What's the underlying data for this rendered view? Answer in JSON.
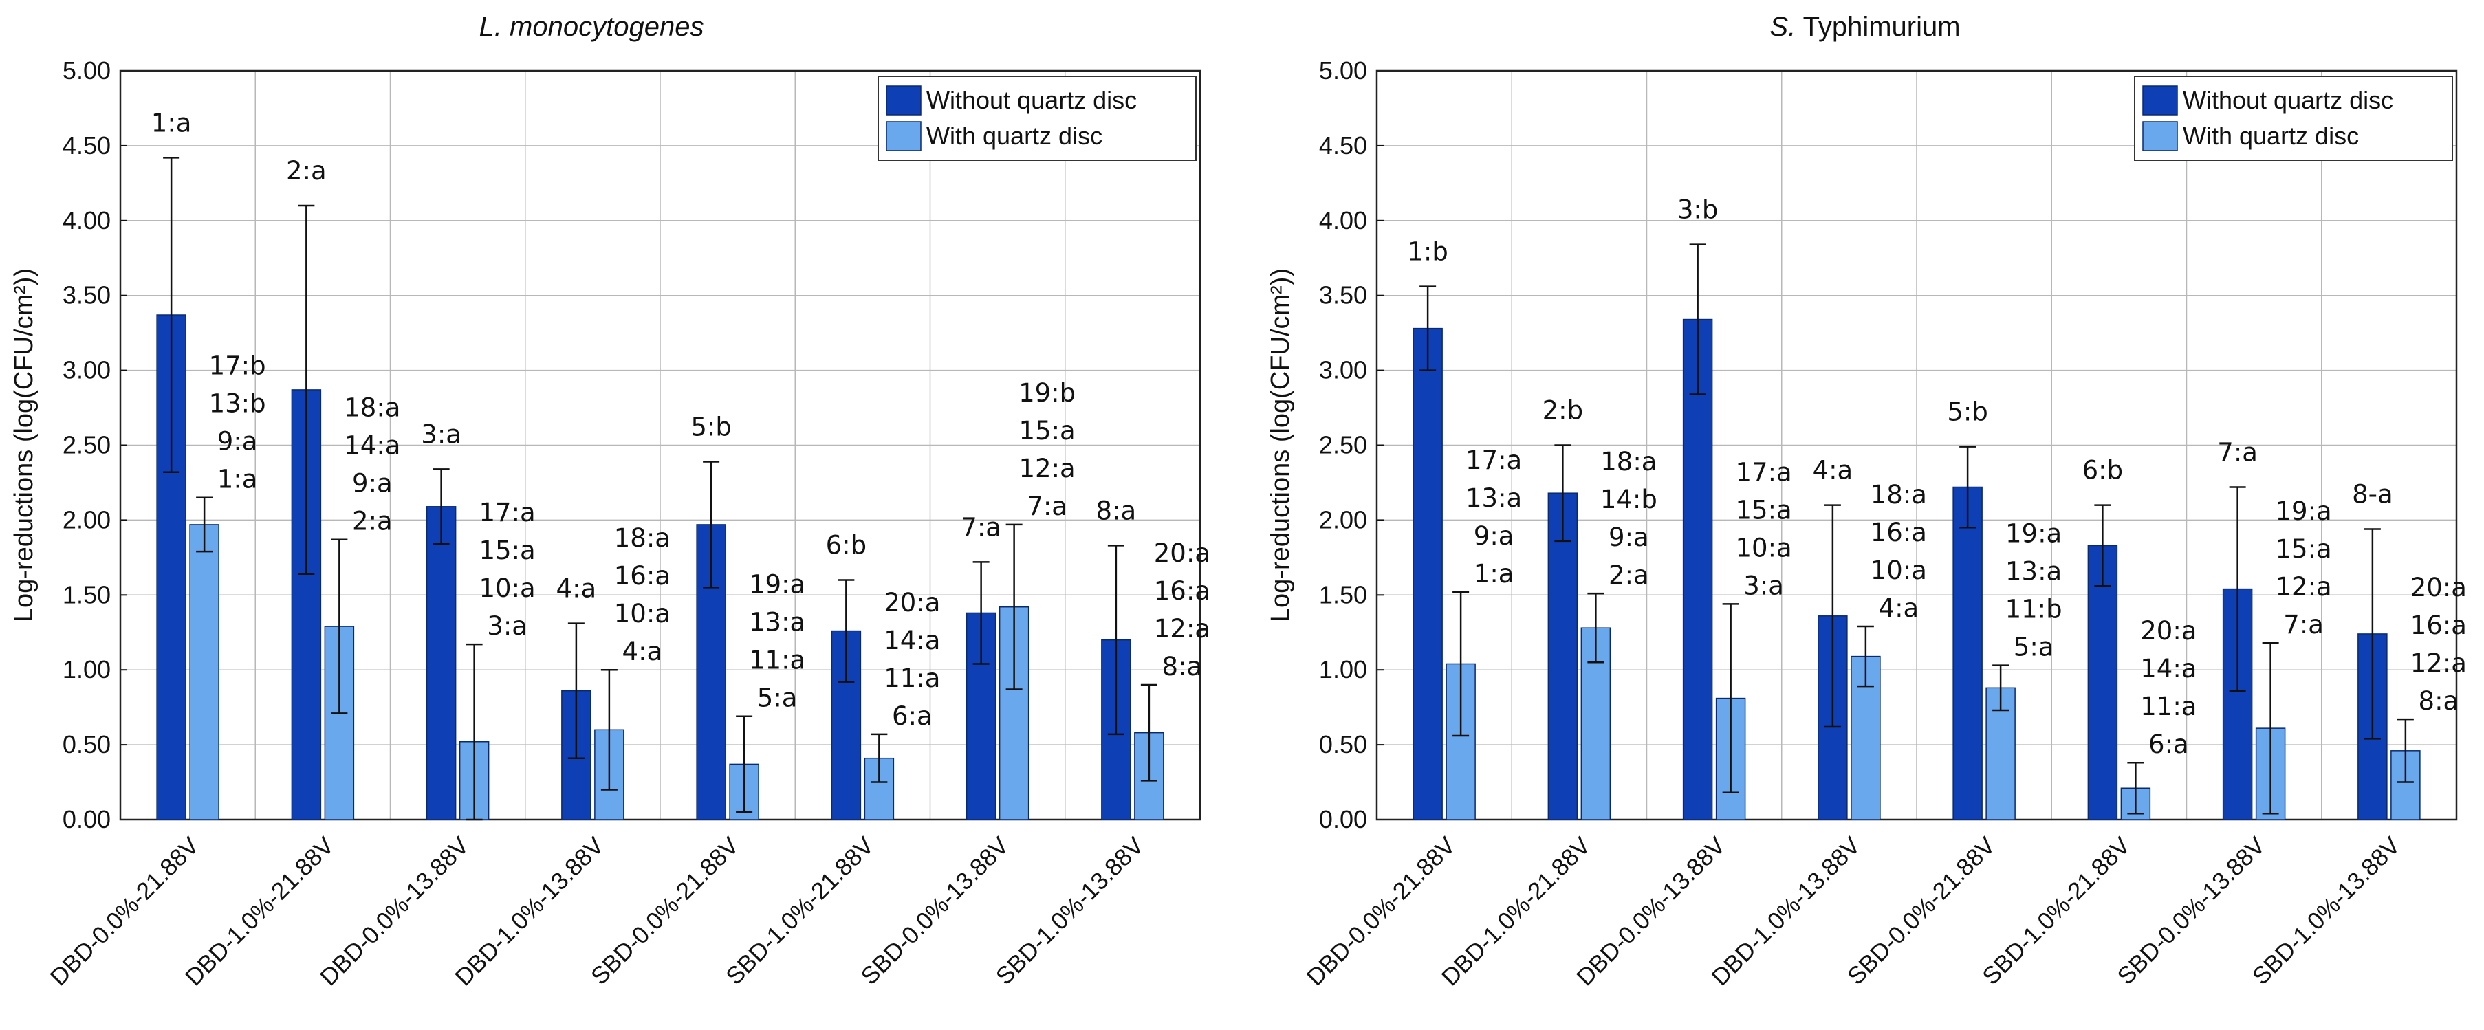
{
  "chart_data": [
    {
      "type": "bar",
      "title_italic": "L. monocytogenes",
      "title_rest": "",
      "ylabel": "Log-reductions (log(CFU/cm²))",
      "xlabel": "",
      "ylim": [
        0,
        5
      ],
      "yticks": [
        "0.00",
        "0.50",
        "1.00",
        "1.50",
        "2.00",
        "2.50",
        "3.00",
        "3.50",
        "4.00",
        "4.50",
        "5.00"
      ],
      "grid": true,
      "legend_position": "top-right",
      "categories": [
        "DBD-0.0%-21.88V",
        "DBD-1.0%-21.88V",
        "DBD-0.0%-13.88V",
        "DBD-1.0%-13.88V",
        "SBD-0.0%-21.88V",
        "SBD-1.0%-21.88V",
        "SBD-0.0%-13.88V",
        "SBD-1.0%-13.88V"
      ],
      "series": [
        {
          "name": "Without quartz disc",
          "color": "#0f3fb4",
          "values": [
            3.37,
            2.87,
            2.09,
            0.86,
            1.97,
            1.26,
            1.38,
            1.2
          ],
          "errors": [
            1.05,
            1.23,
            0.25,
            0.45,
            0.42,
            0.34,
            0.34,
            0.63
          ],
          "labels": [
            [
              "1:a"
            ],
            [
              "2:a"
            ],
            [
              "3:a"
            ],
            [
              "4:a"
            ],
            [
              "5:b"
            ],
            [
              "6:b"
            ],
            [
              "7:a"
            ],
            [
              "8:a"
            ]
          ]
        },
        {
          "name": "With quartz disc",
          "color": "#6aa8ee",
          "values": [
            1.97,
            1.29,
            0.52,
            0.6,
            0.37,
            0.41,
            1.42,
            0.58
          ],
          "errors": [
            0.18,
            0.58,
            0.65,
            0.4,
            0.32,
            0.16,
            0.55,
            0.32
          ],
          "labels": [
            [
              "17:b",
              "13:b",
              "9:a",
              "1:a"
            ],
            [
              "18:a",
              "14:a",
              "9:a",
              "2:a"
            ],
            [
              "17:a",
              "15:a",
              "10:a",
              "3:a"
            ],
            [
              "18:a",
              "16:a",
              "10:a",
              "4:a"
            ],
            [
              "19:a",
              "13:a",
              "11:a",
              "5:a"
            ],
            [
              "20:a",
              "14:a",
              "11:a",
              "6:a"
            ],
            [
              "19:b",
              "15:a",
              "12:a",
              "7:a"
            ],
            [
              "20:a",
              "16:a",
              "12:a",
              "8:a"
            ]
          ]
        }
      ]
    },
    {
      "type": "bar",
      "title_italic": "S.",
      "title_rest": " Typhimurium",
      "ylabel": "Log-reductions (log(CFU/cm²))",
      "xlabel": "",
      "ylim": [
        0,
        5
      ],
      "yticks": [
        "0.00",
        "0.50",
        "1.00",
        "1.50",
        "2.00",
        "2.50",
        "3.00",
        "3.50",
        "4.00",
        "4.50",
        "5.00"
      ],
      "grid": true,
      "legend_position": "top-right",
      "categories": [
        "DBD-0.0%-21.88V",
        "DBD-1.0%-21.88V",
        "DBD-0.0%-13.88V",
        "DBD-1.0%-13.88V",
        "SBD-0.0%-21.88V",
        "SBD-1.0%-21.88V",
        "SBD-0.0%-13.88V",
        "SBD-1.0%-13.88V"
      ],
      "series": [
        {
          "name": "Without quartz disc",
          "color": "#0f3fb4",
          "values": [
            3.28,
            2.18,
            3.34,
            1.36,
            2.22,
            1.83,
            1.54,
            1.24
          ],
          "errors": [
            0.28,
            0.32,
            0.5,
            0.74,
            0.27,
            0.27,
            0.68,
            0.7
          ],
          "labels": [
            [
              "1:b"
            ],
            [
              "2:b"
            ],
            [
              "3:b"
            ],
            [
              "4:a"
            ],
            [
              "5:b"
            ],
            [
              "6:b"
            ],
            [
              "7:a"
            ],
            [
              "8-a"
            ]
          ]
        },
        {
          "name": "With quartz disc",
          "color": "#6aa8ee",
          "values": [
            1.04,
            1.28,
            0.81,
            1.09,
            0.88,
            0.21,
            0.61,
            0.46
          ],
          "errors": [
            0.48,
            0.23,
            0.63,
            0.2,
            0.15,
            0.17,
            0.57,
            0.21
          ],
          "labels": [
            [
              "17:a",
              "13:a",
              "9:a",
              "1:a"
            ],
            [
              "18:a",
              "14:b",
              "9:a",
              "2:a"
            ],
            [
              "17:a",
              "15:a",
              "10:a",
              "3:a"
            ],
            [
              "18:a",
              "16:a",
              "10:a",
              "4:a"
            ],
            [
              "19:a",
              "13:a",
              "11:b",
              "5:a"
            ],
            [
              "20:a",
              "14:a",
              "11:a",
              "6:a"
            ],
            [
              "19:a",
              "15:a",
              "12:a",
              "7:a"
            ],
            [
              "20:a",
              "16:a",
              "12:a",
              "8:a"
            ]
          ]
        }
      ]
    }
  ]
}
